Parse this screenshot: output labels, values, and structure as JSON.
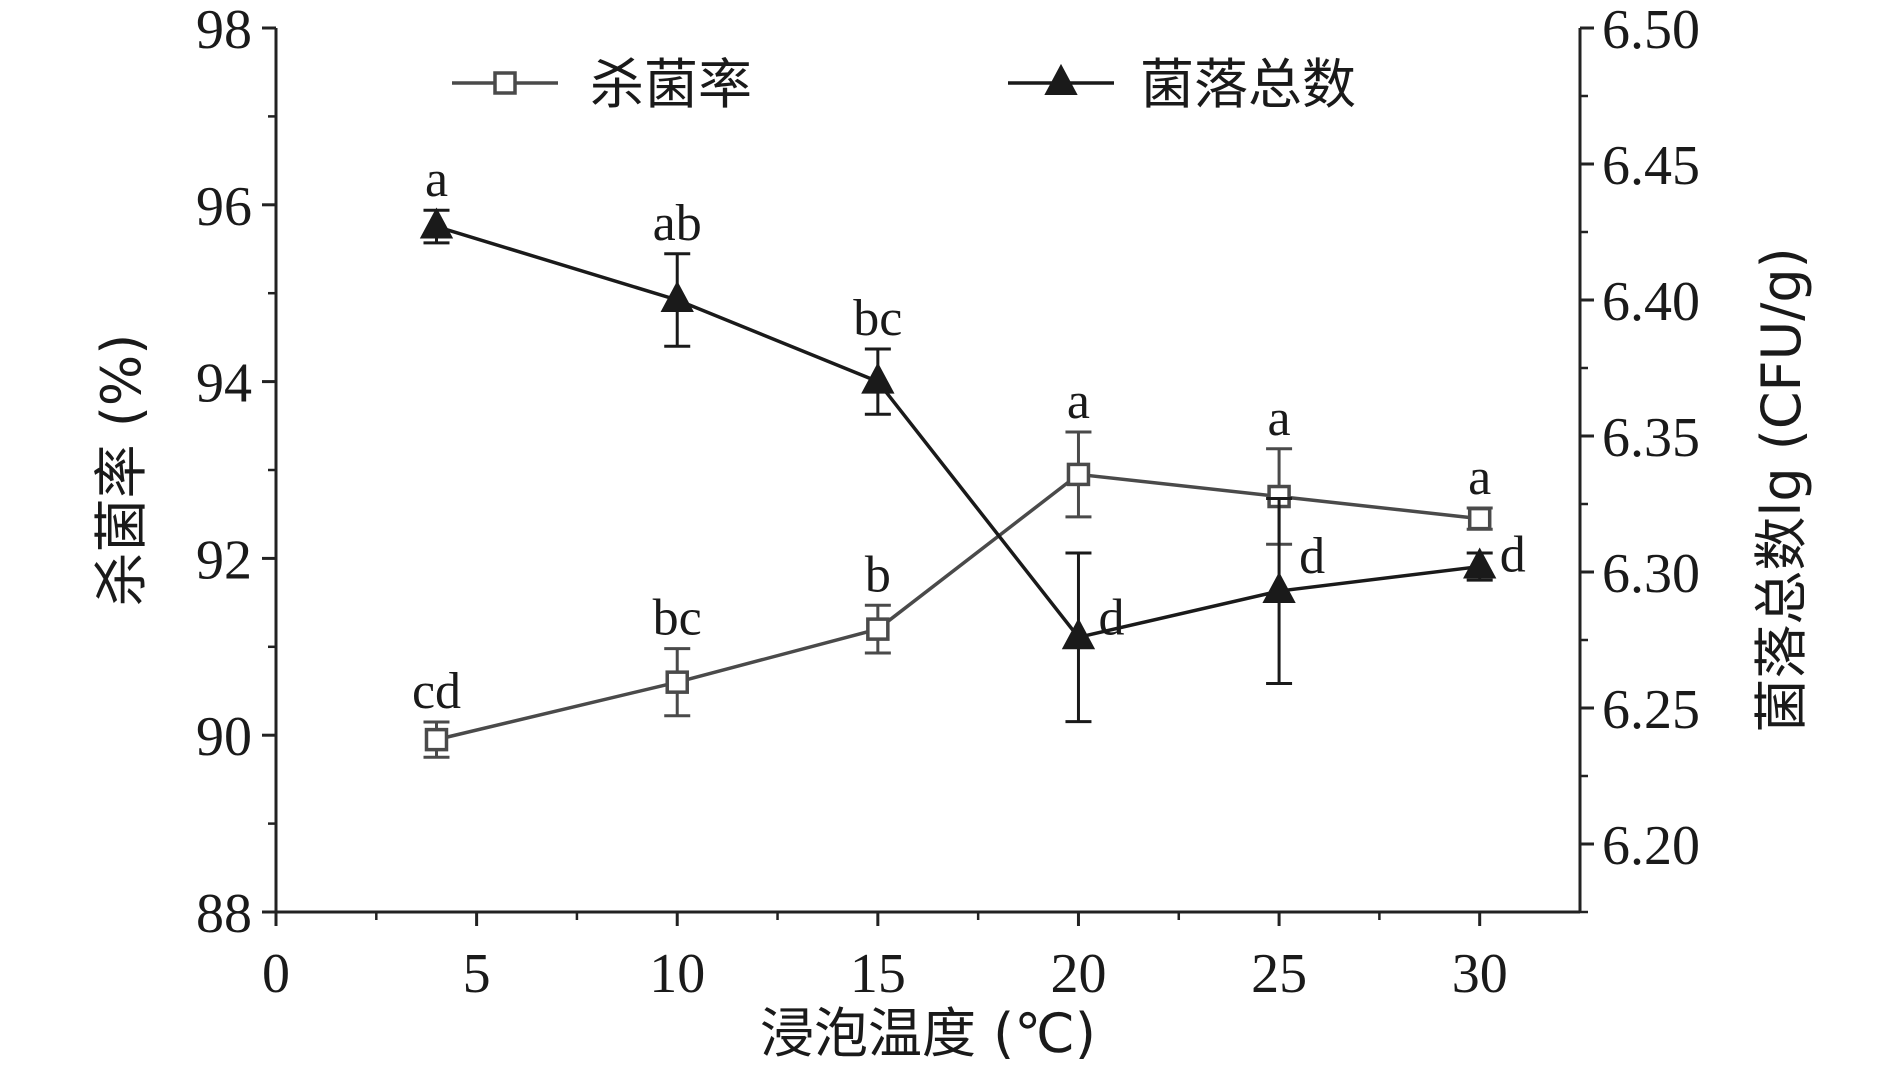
{
  "chart_data": {
    "type": "line",
    "x": [
      4,
      10,
      15,
      20,
      25,
      30
    ],
    "xlabel": "浸泡温度 (℃)",
    "ylabel_left": "杀菌率 (%)",
    "ylabel_right": "菌落总数lg (CFU/g)",
    "xlim": [
      0,
      32.5
    ],
    "ylim_left": [
      88,
      98
    ],
    "ylim_right": [
      6.175,
      6.5
    ],
    "x_ticks": [
      "0",
      "5",
      "10",
      "15",
      "20",
      "25",
      "30"
    ],
    "y_left_ticks": [
      "88",
      "90",
      "92",
      "94",
      "96",
      "98"
    ],
    "y_right_ticks": [
      "6.20",
      "6.25",
      "6.30",
      "6.35",
      "6.40",
      "6.45",
      "6.50"
    ],
    "legend_position": "top",
    "series": [
      {
        "name": "杀菌率",
        "axis": "left",
        "marker": "open-square",
        "color": "#4a4a4a",
        "values": [
          89.95,
          90.6,
          91.2,
          92.95,
          92.7,
          92.45
        ],
        "errors": [
          0.2,
          0.38,
          0.27,
          0.48,
          0.54,
          0.12
        ],
        "labels": [
          "cd",
          "bc",
          "b",
          "a",
          "a",
          "a"
        ]
      },
      {
        "name": "菌落总数",
        "axis": "right",
        "marker": "filled-triangle",
        "color": "#1a1a1a",
        "values": [
          6.427,
          6.4,
          6.37,
          6.276,
          6.293,
          6.302
        ],
        "errors": [
          0.006,
          0.017,
          0.012,
          0.031,
          0.034,
          0.005
        ],
        "labels": [
          "a",
          "ab",
          "bc",
          "d",
          "d",
          "d"
        ]
      }
    ]
  }
}
